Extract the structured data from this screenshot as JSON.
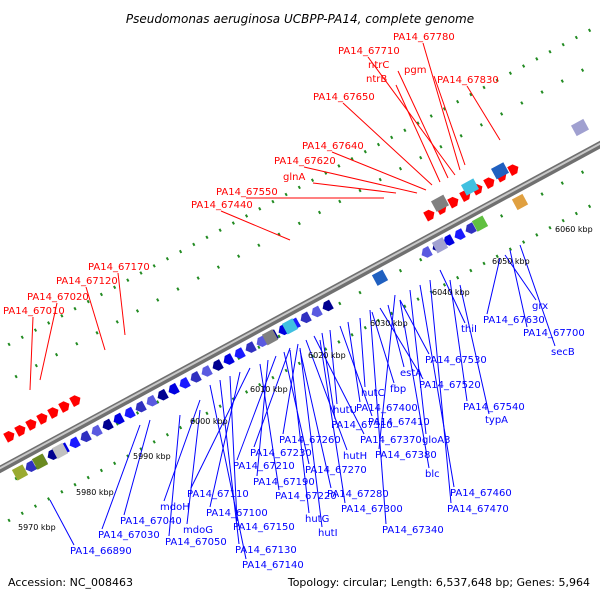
{
  "title": "Pseudomonas aeruginosa UCBPP-PA14, complete genome",
  "footer": {
    "accession": "Accession: NC_008463",
    "summary": "Topology: circular; Length: 6,537,648 bp; Genes: 5,964"
  },
  "colors": {
    "top_labels": "#ff0000",
    "bottom_labels": "#0000ff",
    "backbone": "#808080",
    "tick": "#228b22",
    "forward_arrow": "#ff0000",
    "reverse_arrow": "#0000ff"
  },
  "scale_ticks": [
    "5970 kbp",
    "5980 kbp",
    "5990 kbp",
    "6000 kbp",
    "6010 kbp",
    "6020 kbp",
    "6030 kbp",
    "6040 kbp",
    "6050 kbp",
    "6060 kbp"
  ],
  "top_labels": [
    "PA14_67780",
    "PA14_67710",
    "ntrC",
    "pgm",
    "ntrB",
    "PA14_67830",
    "PA14_67650",
    "PA14_67640",
    "PA14_67620",
    "glnA",
    "PA14_67550",
    "PA14_67440",
    "PA14_67170",
    "PA14_67120",
    "PA14_67020",
    "PA14_67010"
  ],
  "bottom_labels": [
    "grx",
    "PA14_67630",
    "PA14_67700",
    "secB",
    "thiI",
    "PA14_67530",
    "estA",
    "PA14_67520",
    "fbp",
    "hutC",
    "PA14_67540",
    "typA",
    "PA14_67400",
    "PA14_67410",
    "hutU",
    "PA14_67310",
    "gloA3",
    "PA14_67370",
    "hutH",
    "PA14_67260",
    "PA14_67380",
    "PA14_67230",
    "PA14_67270",
    "blc",
    "PA14_67210",
    "PA14_67190",
    "PA14_67280",
    "PA14_67460",
    "PA14_67220",
    "PA14_67110",
    "PA14_67470",
    "PA14_67300",
    "mdoH",
    "PA14_67100",
    "hutG",
    "PA14_67040",
    "mdoG",
    "PA14_67150",
    "hutI",
    "PA14_67340",
    "PA14_67030",
    "PA14_67050",
    "PA14_67130",
    "PA14_66890",
    "PA14_67140"
  ]
}
